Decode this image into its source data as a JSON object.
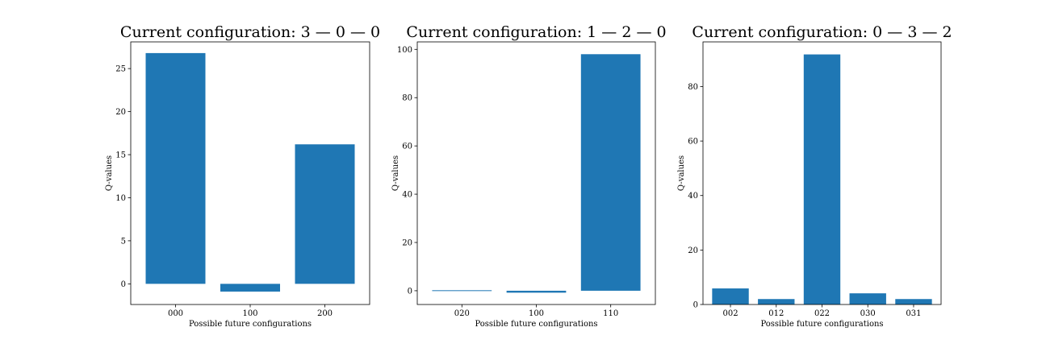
{
  "chart_data": [
    {
      "type": "bar",
      "title": "Current configuration: 3 — 0 — 0",
      "xlabel": "Possible future configurations",
      "ylabel": "Q-values",
      "categories": [
        "000",
        "100",
        "200"
      ],
      "values": [
        26.8,
        -0.9,
        16.2
      ],
      "ylim": [
        -2.4,
        28.1
      ],
      "yticks": [
        0,
        5,
        10,
        15,
        20,
        25
      ],
      "color": "#1f77b4",
      "grid": false,
      "legend": "none"
    },
    {
      "type": "bar",
      "title": "Current configuration: 1 — 2 — 0",
      "xlabel": "Possible future configurations",
      "ylabel": "Q-values",
      "categories": [
        "020",
        "100",
        "110"
      ],
      "values": [
        0.2,
        -0.8,
        98.0
      ],
      "ylim": [
        -5.7,
        103.1
      ],
      "yticks": [
        0,
        20,
        40,
        60,
        80,
        100
      ],
      "color": "#1f77b4",
      "grid": false,
      "legend": "none"
    },
    {
      "type": "bar",
      "title": "Current configuration: 0 — 3 — 2",
      "xlabel": "Possible future configurations",
      "ylabel": "Q-values",
      "categories": [
        "002",
        "012",
        "022",
        "030",
        "031"
      ],
      "values": [
        5.9,
        2.0,
        91.8,
        4.1,
        2.0
      ],
      "ylim": [
        0,
        96.4
      ],
      "yticks": [
        0,
        20,
        40,
        60,
        80
      ],
      "color": "#1f77b4",
      "grid": false,
      "legend": "none"
    }
  ]
}
